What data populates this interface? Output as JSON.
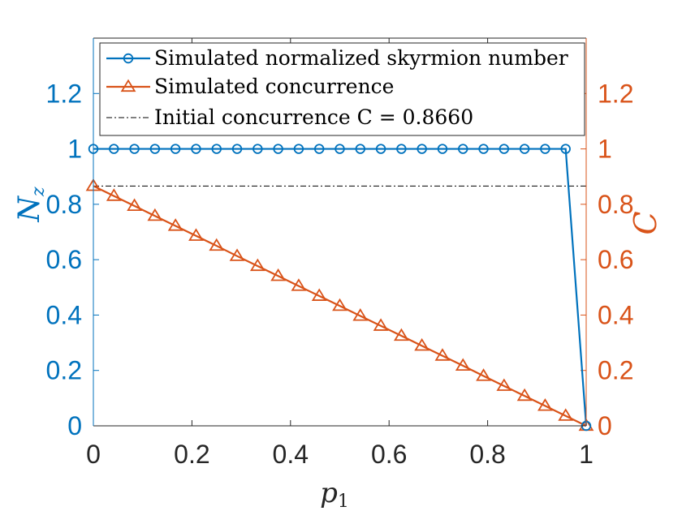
{
  "chart_data": {
    "type": "line",
    "xlabel": "p",
    "xlabel_sub": "1",
    "ylabel_left": "N",
    "ylabel_left_sub": "z",
    "ylabel_right": "C",
    "xlim": [
      0,
      1
    ],
    "ylim_left": [
      0,
      1.4
    ],
    "ylim_right": [
      0,
      1.4
    ],
    "x_ticks": [
      "0",
      "0.2",
      "0.4",
      "0.6",
      "0.8",
      "1"
    ],
    "y_ticks_left": [
      "0",
      "0.2",
      "0.4",
      "0.6",
      "0.8",
      "1",
      "1.2"
    ],
    "y_ticks_right": [
      "0",
      "0.2",
      "0.4",
      "0.6",
      "0.8",
      "1",
      "1.2"
    ],
    "grid": false,
    "legend_position": "top",
    "series": [
      {
        "name": "Simulated normalized skyrmion number",
        "axis": "left",
        "color": "#0072BD",
        "marker": "circle",
        "x": [
          0,
          0.04167,
          0.08333,
          0.125,
          0.16667,
          0.20833,
          0.25,
          0.29167,
          0.33333,
          0.375,
          0.41667,
          0.45833,
          0.5,
          0.54167,
          0.58333,
          0.625,
          0.66667,
          0.70833,
          0.75,
          0.79167,
          0.83333,
          0.875,
          0.91667,
          0.95833,
          1
        ],
        "y": [
          1,
          1,
          1,
          1,
          1,
          1,
          1,
          1,
          1,
          1,
          1,
          1,
          1,
          1,
          1,
          1,
          1,
          1,
          1,
          1,
          1,
          1,
          1,
          1,
          0
        ]
      },
      {
        "name": "Simulated concurrence",
        "axis": "right",
        "color": "#D95319",
        "marker": "triangle",
        "x": [
          0,
          0.04167,
          0.08333,
          0.125,
          0.16667,
          0.20833,
          0.25,
          0.29167,
          0.33333,
          0.375,
          0.41667,
          0.45833,
          0.5,
          0.54167,
          0.58333,
          0.625,
          0.66667,
          0.70833,
          0.75,
          0.79167,
          0.83333,
          0.875,
          0.91667,
          0.95833,
          1
        ],
        "y": [
          0.866,
          0.83,
          0.794,
          0.758,
          0.722,
          0.686,
          0.65,
          0.613,
          0.577,
          0.541,
          0.505,
          0.469,
          0.433,
          0.397,
          0.361,
          0.325,
          0.289,
          0.253,
          0.217,
          0.18,
          0.144,
          0.108,
          0.072,
          0.036,
          0
        ]
      },
      {
        "name": "Initial concurrence",
        "legend_math": "C = 0.8660",
        "axis": "right",
        "color": "#000000",
        "style": "dash-dot",
        "x": [
          0,
          1
        ],
        "y": [
          0.866,
          0.866
        ]
      }
    ],
    "colors": {
      "left_axis": "#0072BD",
      "right_axis": "#D95319",
      "bottom_axis": "#262626"
    }
  }
}
